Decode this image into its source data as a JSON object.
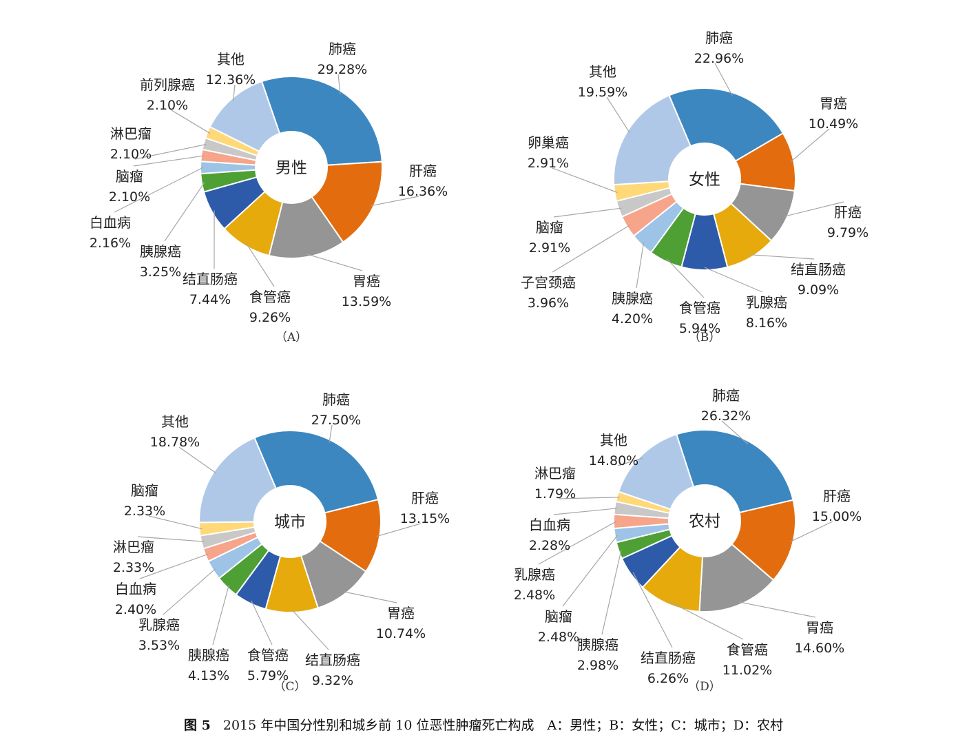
{
  "caption": {
    "figure_no": "图 5",
    "text": "2015 年中国分性别和城乡前 10 位恶性肿瘤死亡构成　A：男性；B：女性；C：城市；D：农村"
  },
  "colors": {
    "肺癌": "#3D87C1",
    "肝癌": "#E36D0E",
    "胃癌": "#959595",
    "食管癌": "#E6AA0C",
    "结直肠癌": "#2D5BAA",
    "胰腺癌": "#4E9F34",
    "白血病": "#F6A48A",
    "脑瘤": "#9DC3E6",
    "淋巴瘤": "#C8C8C8",
    "前列腺癌": "#FFD878",
    "其他": "#B0C8E8",
    "乳腺癌": "#9DC3E6",
    "子宫颈癌": "#F6A48A",
    "卵巢癌": "#FFD878"
  },
  "chart_data": [
    {
      "type": "pie",
      "panel_label": "（A）",
      "center_label": "男性",
      "slices": [
        {
          "name": "肺癌",
          "value": 29.28,
          "pct": "29.28%",
          "color": "#3D87C1"
        },
        {
          "name": "肝癌",
          "value": 16.36,
          "pct": "16.36%",
          "color": "#E36D0E"
        },
        {
          "name": "胃癌",
          "value": 13.59,
          "pct": "13.59%",
          "color": "#959595"
        },
        {
          "name": "食管癌",
          "value": 9.26,
          "pct": "9.26%",
          "color": "#E6AA0C"
        },
        {
          "name": "结直肠癌",
          "value": 7.44,
          "pct": "7.44%",
          "color": "#2D5BAA"
        },
        {
          "name": "胰腺癌",
          "value": 3.25,
          "pct": "3.25%",
          "color": "#4E9F34"
        },
        {
          "name": "白血病",
          "value": 2.16,
          "pct": "2.16%",
          "color": "#9DC3E6"
        },
        {
          "name": "脑瘤",
          "value": 2.1,
          "pct": "2.10%",
          "color": "#F6A48A"
        },
        {
          "name": "淋巴瘤",
          "value": 2.1,
          "pct": "2.10%",
          "color": "#C8C8C8"
        },
        {
          "name": "前列腺癌",
          "value": 2.1,
          "pct": "2.10%",
          "color": "#FFD878"
        },
        {
          "name": "其他",
          "value": 12.36,
          "pct": "12.36%",
          "color": "#B0C8E8"
        }
      ]
    },
    {
      "type": "pie",
      "panel_label": "（B）",
      "center_label": "女性",
      "slices": [
        {
          "name": "肺癌",
          "value": 22.96,
          "pct": "22.96%",
          "color": "#3D87C1"
        },
        {
          "name": "胃癌",
          "value": 10.49,
          "pct": "10.49%",
          "color": "#E36D0E"
        },
        {
          "name": "肝癌",
          "value": 9.79,
          "pct": "9.79%",
          "color": "#959595"
        },
        {
          "name": "结直肠癌",
          "value": 9.09,
          "pct": "9.09%",
          "color": "#E6AA0C"
        },
        {
          "name": "乳腺癌",
          "value": 8.16,
          "pct": "8.16%",
          "color": "#2D5BAA"
        },
        {
          "name": "食管癌",
          "value": 5.94,
          "pct": "5.94%",
          "color": "#4E9F34"
        },
        {
          "name": "胰腺癌",
          "value": 4.2,
          "pct": "4.20%",
          "color": "#9DC3E6"
        },
        {
          "name": "子宫颈癌",
          "value": 3.96,
          "pct": "3.96%",
          "color": "#F6A48A"
        },
        {
          "name": "脑瘤",
          "value": 2.91,
          "pct": "2.91%",
          "color": "#C8C8C8"
        },
        {
          "name": "卵巢癌",
          "value": 2.91,
          "pct": "2.91%",
          "color": "#FFD878"
        },
        {
          "name": "其他",
          "value": 19.59,
          "pct": "19.59%",
          "color": "#B0C8E8"
        }
      ]
    },
    {
      "type": "pie",
      "panel_label": "（C）",
      "center_label": "城市",
      "slices": [
        {
          "name": "肺癌",
          "value": 27.5,
          "pct": "27.50%",
          "color": "#3D87C1"
        },
        {
          "name": "肝癌",
          "value": 13.15,
          "pct": "13.15%",
          "color": "#E36D0E"
        },
        {
          "name": "胃癌",
          "value": 10.74,
          "pct": "10.74%",
          "color": "#959595"
        },
        {
          "name": "结直肠癌",
          "value": 9.32,
          "pct": "9.32%",
          "color": "#E6AA0C"
        },
        {
          "name": "食管癌",
          "value": 5.79,
          "pct": "5.79%",
          "color": "#2D5BAA"
        },
        {
          "name": "胰腺癌",
          "value": 4.13,
          "pct": "4.13%",
          "color": "#4E9F34"
        },
        {
          "name": "乳腺癌",
          "value": 3.53,
          "pct": "3.53%",
          "color": "#9DC3E6"
        },
        {
          "name": "白血病",
          "value": 2.4,
          "pct": "2.40%",
          "color": "#F6A48A"
        },
        {
          "name": "淋巴瘤",
          "value": 2.33,
          "pct": "2.33%",
          "color": "#C8C8C8"
        },
        {
          "name": "脑瘤",
          "value": 2.33,
          "pct": "2.33%",
          "color": "#FFD878"
        },
        {
          "name": "其他",
          "value": 18.78,
          "pct": "18.78%",
          "color": "#B0C8E8"
        }
      ]
    },
    {
      "type": "pie",
      "panel_label": "（D）",
      "center_label": "农村",
      "slices": [
        {
          "name": "肺癌",
          "value": 26.32,
          "pct": "26.32%",
          "color": "#3D87C1"
        },
        {
          "name": "肝癌",
          "value": 15.0,
          "pct": "15.00%",
          "color": "#E36D0E"
        },
        {
          "name": "胃癌",
          "value": 14.6,
          "pct": "14.60%",
          "color": "#959595"
        },
        {
          "name": "食管癌",
          "value": 11.02,
          "pct": "11.02%",
          "color": "#E6AA0C"
        },
        {
          "name": "结直肠癌",
          "value": 6.26,
          "pct": "6.26%",
          "color": "#2D5BAA"
        },
        {
          "name": "胰腺癌",
          "value": 2.98,
          "pct": "2.98%",
          "color": "#4E9F34"
        },
        {
          "name": "脑瘤",
          "value": 2.48,
          "pct": "2.48%",
          "color": "#9DC3E6"
        },
        {
          "name": "乳腺癌",
          "value": 2.48,
          "pct": "2.48%",
          "color": "#F6A48A"
        },
        {
          "name": "白血病",
          "value": 2.28,
          "pct": "2.28%",
          "color": "#C8C8C8"
        },
        {
          "name": "淋巴瘤",
          "value": 1.79,
          "pct": "1.79%",
          "color": "#FFD878"
        },
        {
          "name": "其他",
          "value": 14.8,
          "pct": "14.80%",
          "color": "#B0C8E8"
        }
      ]
    }
  ]
}
